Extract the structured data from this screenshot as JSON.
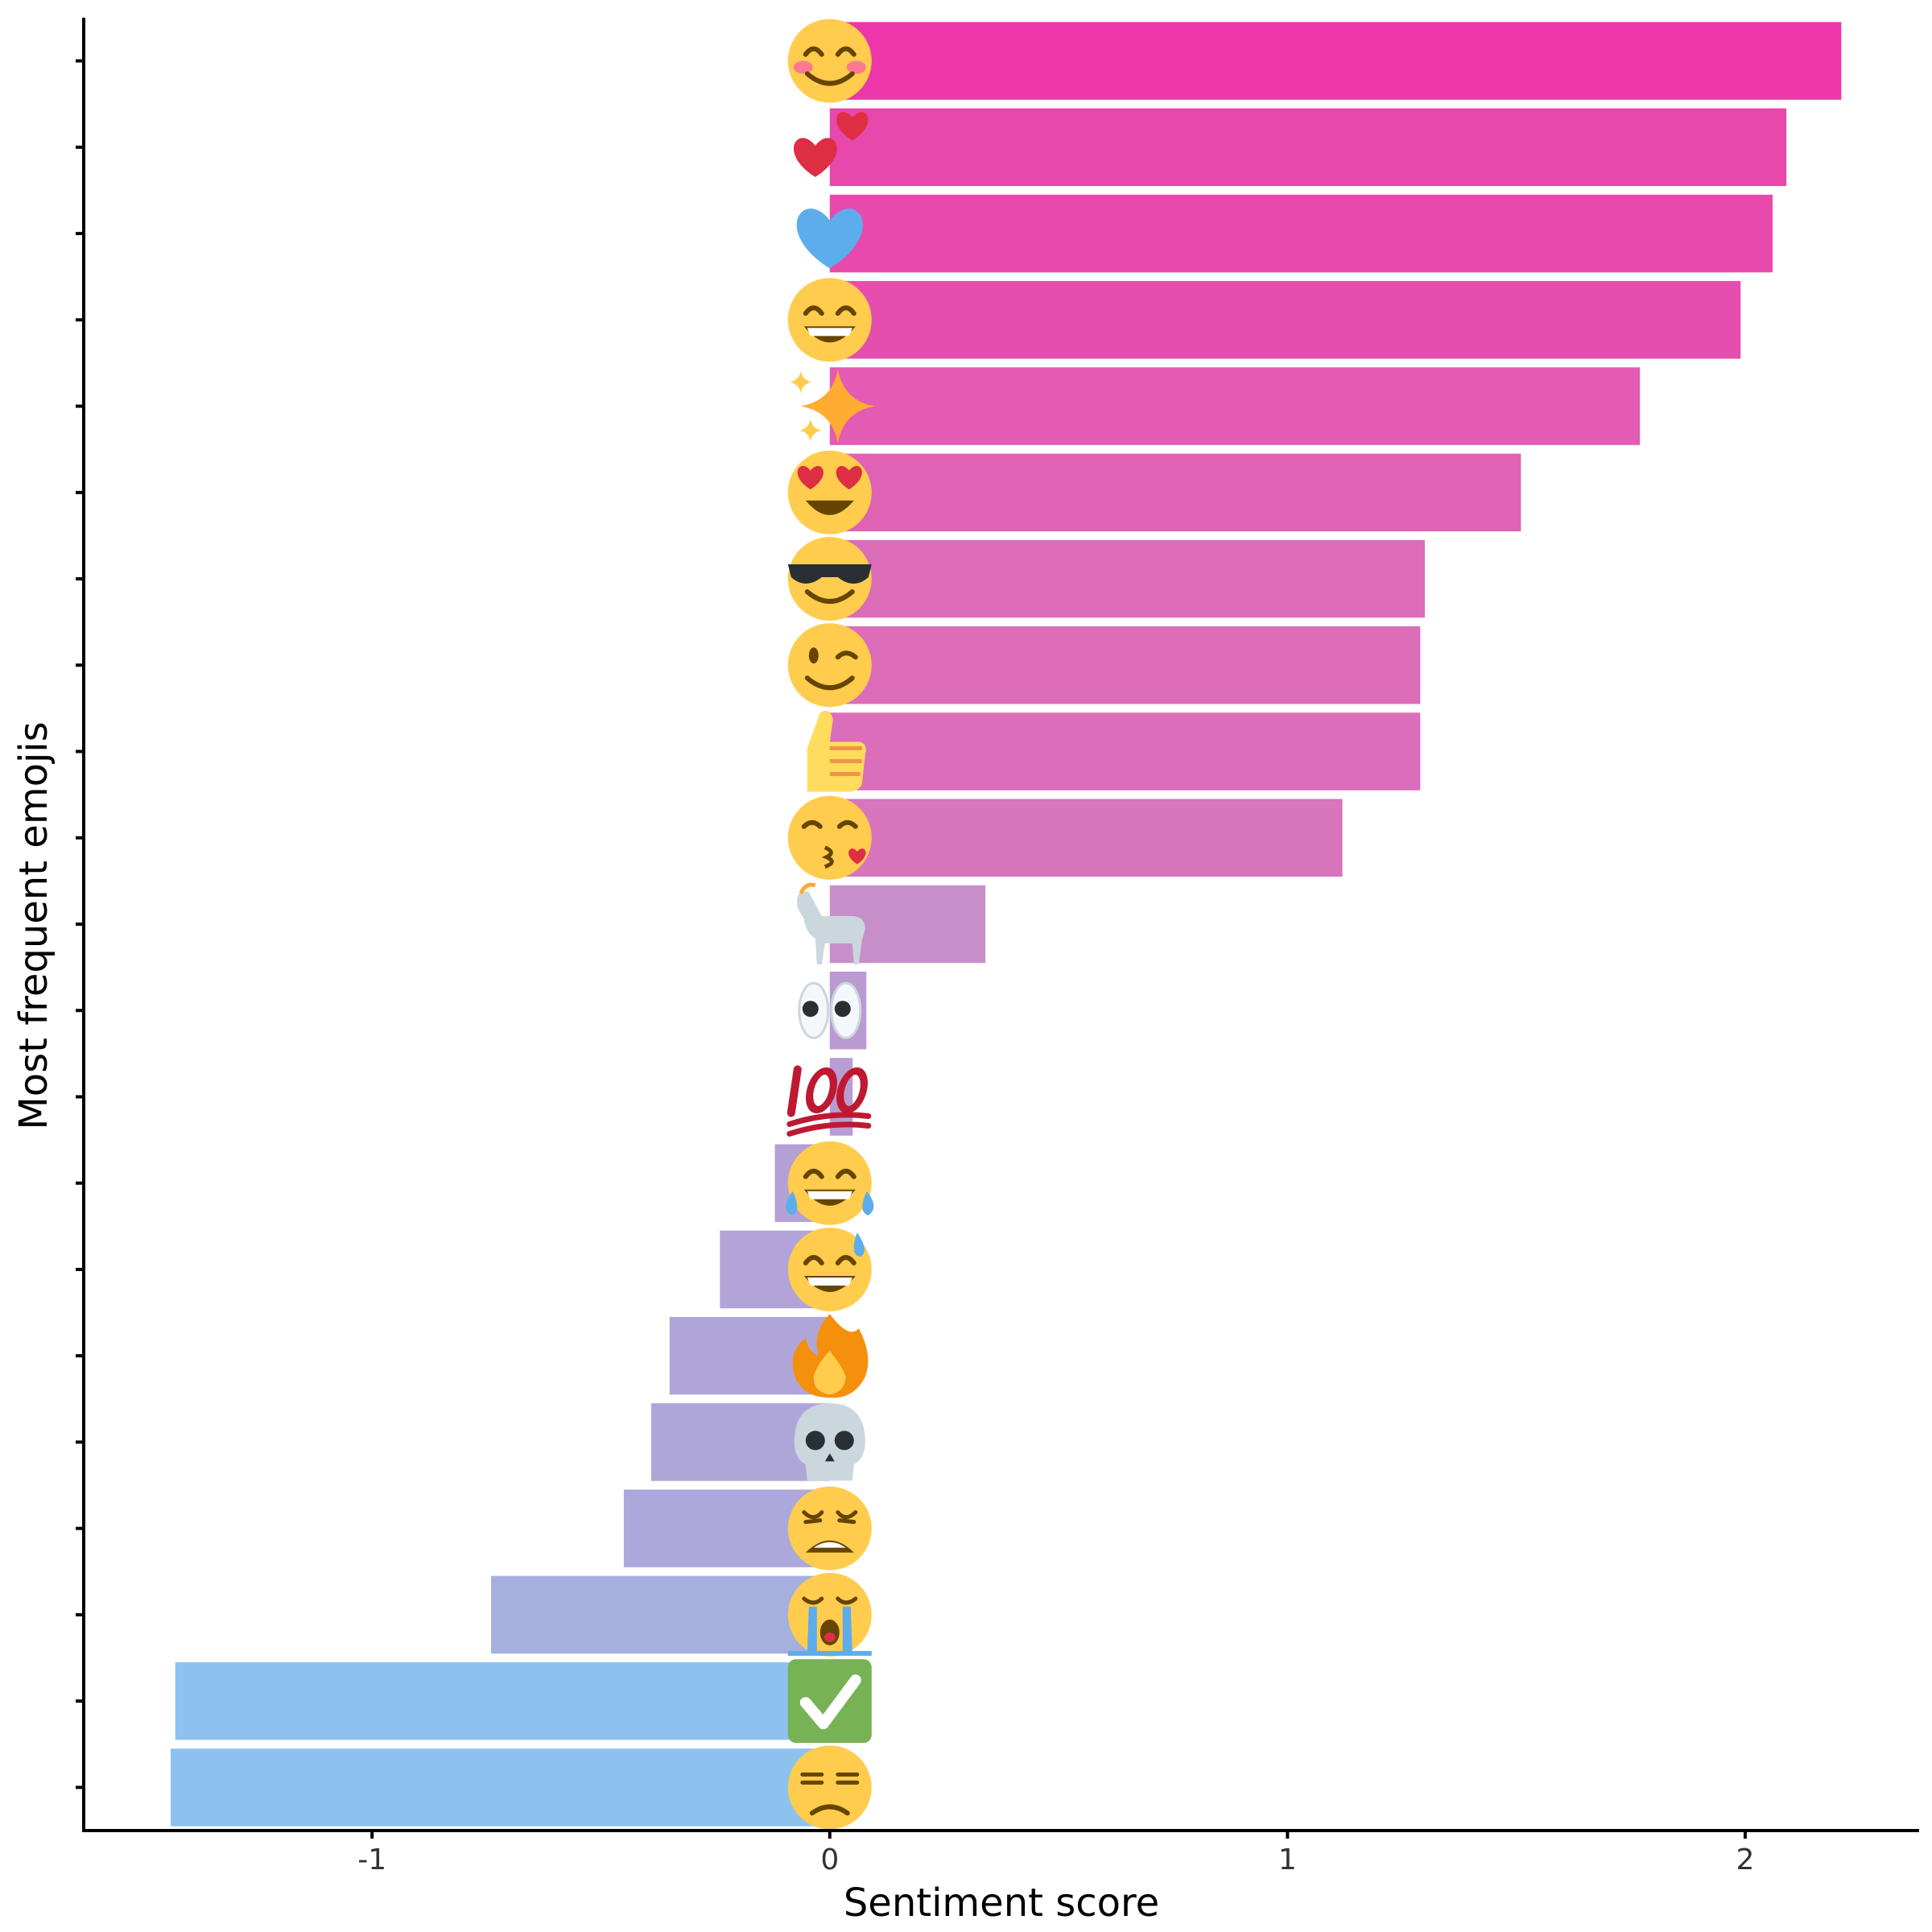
{
  "chart_data": {
    "type": "bar",
    "orientation": "horizontal",
    "xlabel": "Sentiment score",
    "ylabel": "Most frequent emojis",
    "xlim": [
      -1.63,
      2.38
    ],
    "x_ticks": [
      -1,
      0,
      1,
      2
    ],
    "x_tick_labels": [
      "-1",
      "0",
      "1",
      "2"
    ],
    "grid": false,
    "legend": "none",
    "categories": [
      "smiling face with smiling eyes",
      "two hearts",
      "blue heart",
      "beaming face with smiling eyes",
      "sparkles",
      "smiling face with heart-eyes",
      "smiling face with sunglasses",
      "winking face",
      "thumbs up",
      "face blowing a kiss",
      "goat",
      "eyes",
      "hundred points",
      "face with tears of joy",
      "grinning face with sweat",
      "fire",
      "skull",
      "weary face",
      "loudly crying face",
      "check mark button",
      "unamused face"
    ],
    "emoji_icons": [
      "smiling-face-with-smiling-eyes-icon",
      "two-hearts-icon",
      "blue-heart-icon",
      "beaming-face-icon",
      "sparkles-icon",
      "heart-eyes-face-icon",
      "sunglasses-face-icon",
      "winking-face-icon",
      "thumbs-up-icon",
      "face-blowing-kiss-icon",
      "goat-icon",
      "eyes-icon",
      "hundred-points-icon",
      "face-with-tears-of-joy-icon",
      "grinning-face-with-sweat-icon",
      "fire-icon",
      "skull-icon",
      "weary-face-icon",
      "loudly-crying-face-icon",
      "check-mark-button-icon",
      "unamused-face-icon"
    ],
    "values": [
      2.21,
      2.09,
      2.06,
      1.99,
      1.77,
      1.51,
      1.3,
      1.29,
      1.29,
      1.12,
      0.34,
      0.08,
      0.05,
      -0.12,
      -0.24,
      -0.35,
      -0.39,
      -0.45,
      -0.74,
      -1.43,
      -1.44
    ],
    "colors": [
      "#EC36AA",
      "#E847AB",
      "#E74AAC",
      "#E54EAF",
      "#E35BB2",
      "#DF62B4",
      "#DB6DB8",
      "#DB6DB9",
      "#DB6EBA",
      "#D875BC",
      "#C78FCA",
      "#BB9AD2",
      "#BA9CD4",
      "#B5A0D6",
      "#B2A3D8",
      "#B0A5D9",
      "#AEA6D9",
      "#ACA8DB",
      "#A5B0DF",
      "#8EC2EE",
      "#8DC2EF"
    ]
  }
}
